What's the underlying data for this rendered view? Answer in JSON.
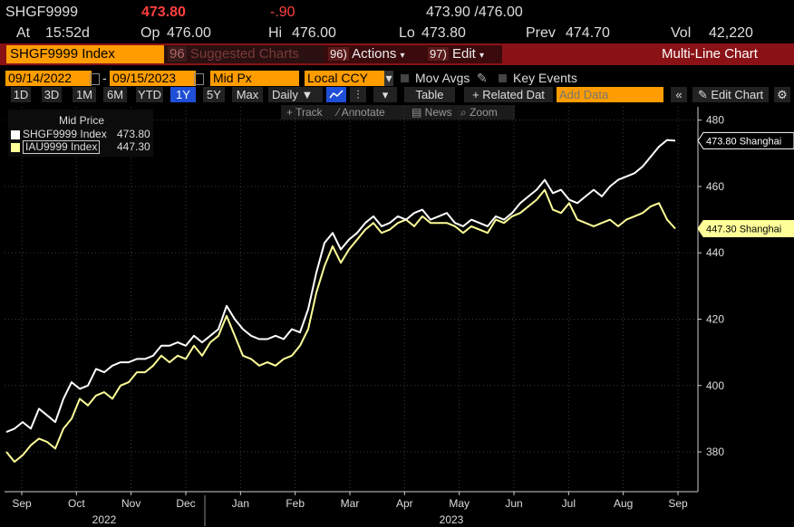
{
  "quote": {
    "ticker": "SHGF9999",
    "last": "473.80",
    "change": "-.90",
    "bid_ask": "473.90 /476.00",
    "at_label": "At",
    "time": "15:52d",
    "op_label": "Op",
    "open": "476.00",
    "hi_label": "Hi",
    "high": "476.00",
    "lo_label": "Lo",
    "low": "473.80",
    "prev_label": "Prev",
    "prev": "474.70",
    "vol_label": "Vol",
    "volume": "42,220"
  },
  "menu": {
    "security": "SHGF9999 Index",
    "suggested": "Suggested Charts",
    "suggested_num": "96",
    "actions": "Actions",
    "actions_num": "96)",
    "edit": "Edit",
    "edit_num": "97)",
    "chart_type": "Multi-Line Chart"
  },
  "settings": {
    "start_date": "09/14/2022",
    "end_date": "09/15/2023",
    "field": "Mid Px",
    "currency": "Local CCY",
    "mov_avgs": "Mov Avgs",
    "key_events": "Key Events"
  },
  "periods": [
    "1D",
    "3D",
    "1M",
    "6M",
    "YTD",
    "1Y",
    "5Y",
    "Max"
  ],
  "selected_period": "1Y",
  "frequency": "Daily",
  "table_label": "Table",
  "related_label": "+ Related Dat",
  "add_data_placeholder": "Add Data",
  "edit_chart_label": "Edit Chart",
  "tools": {
    "track": "Track",
    "annotate": "Annotate",
    "news": "News",
    "zoom": "Zoom"
  },
  "legend": {
    "title": "Mid Price",
    "items": [
      {
        "name": "SHGF9999 Index",
        "value": "473.80",
        "color": "#ffffff"
      },
      {
        "name": "IAU9999 Index",
        "value": "447.30",
        "color": "#ffff99"
      }
    ]
  },
  "chart_data": {
    "type": "line",
    "ylim": [
      368,
      484
    ],
    "yticks": [
      380,
      400,
      420,
      440,
      460,
      480
    ],
    "xticks": [
      "Sep",
      "Oct",
      "Nov",
      "Dec",
      "Jan",
      "Feb",
      "Mar",
      "Apr",
      "May",
      "Jun",
      "Jul",
      "Aug",
      "Sep"
    ],
    "year_labels": [
      "2022",
      "2023"
    ],
    "series": [
      {
        "name": "SHGF9999 Index",
        "color": "#ffffff",
        "last_label": "473.80 Shanghai",
        "values": [
          386,
          387,
          389,
          387,
          393,
          391,
          389,
          396,
          401,
          399,
          400,
          405,
          404,
          406,
          407,
          407,
          408,
          408,
          409,
          412,
          412,
          413,
          412,
          415,
          413,
          415,
          417,
          424,
          420,
          417,
          415,
          414,
          414,
          415,
          414,
          417,
          416,
          423,
          434,
          443,
          446,
          441,
          444,
          446,
          449,
          451,
          448,
          449,
          451,
          450,
          452,
          453,
          450,
          451,
          452,
          449,
          448,
          450,
          449,
          448,
          451,
          450,
          452,
          455,
          457,
          459,
          462,
          458,
          459,
          456,
          455,
          457,
          459,
          457,
          460,
          462,
          463,
          464,
          466,
          469,
          472,
          474,
          473.8
        ]
      },
      {
        "name": "IAU9999 Index",
        "color": "#ffff99",
        "last_label": "447.30 Shanghai",
        "values": [
          380,
          377,
          379,
          382,
          384,
          383,
          381,
          387,
          390,
          396,
          394,
          397,
          398,
          396,
          400,
          401,
          404,
          404,
          406,
          409,
          407,
          409,
          408,
          412,
          409,
          413,
          415,
          421,
          415,
          409,
          408,
          406,
          407,
          406,
          408,
          409,
          412,
          417,
          428,
          436,
          442,
          437,
          441,
          444,
          447,
          449,
          446,
          447,
          449,
          450,
          448,
          451,
          449,
          449,
          449,
          448,
          446,
          448,
          447,
          446,
          450,
          449,
          451,
          452,
          454,
          456,
          459,
          453,
          452,
          455,
          450,
          449,
          448,
          449,
          450,
          448,
          450,
          451,
          452,
          454,
          455,
          450,
          447.3
        ]
      }
    ]
  }
}
